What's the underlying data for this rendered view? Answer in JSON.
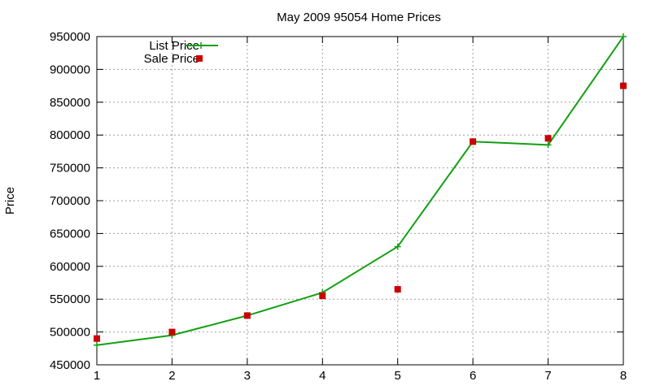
{
  "chart_data": {
    "type": "line",
    "title": "May 2009 95054 Home Prices",
    "xlabel": "",
    "ylabel": "Price",
    "x": [
      1,
      2,
      3,
      4,
      5,
      6,
      7,
      8
    ],
    "xlim": [
      1,
      8
    ],
    "ylim": [
      450000,
      950000
    ],
    "xticks": [
      1,
      2,
      3,
      4,
      5,
      6,
      7,
      8
    ],
    "yticks": [
      450000,
      500000,
      550000,
      600000,
      650000,
      700000,
      750000,
      800000,
      850000,
      900000,
      950000
    ],
    "grid": true,
    "legend_position": "top-left",
    "series": [
      {
        "name": "List Price",
        "style": "linespoints",
        "marker": "plus",
        "color": "#11a011",
        "values": [
          480000,
          495000,
          525000,
          560000,
          630000,
          790000,
          785000,
          950000
        ]
      },
      {
        "name": "Sale Price",
        "style": "points",
        "marker": "square",
        "color": "#cc0000",
        "values": [
          490000,
          500000,
          525000,
          555000,
          565000,
          790000,
          795000,
          875000
        ]
      }
    ]
  }
}
